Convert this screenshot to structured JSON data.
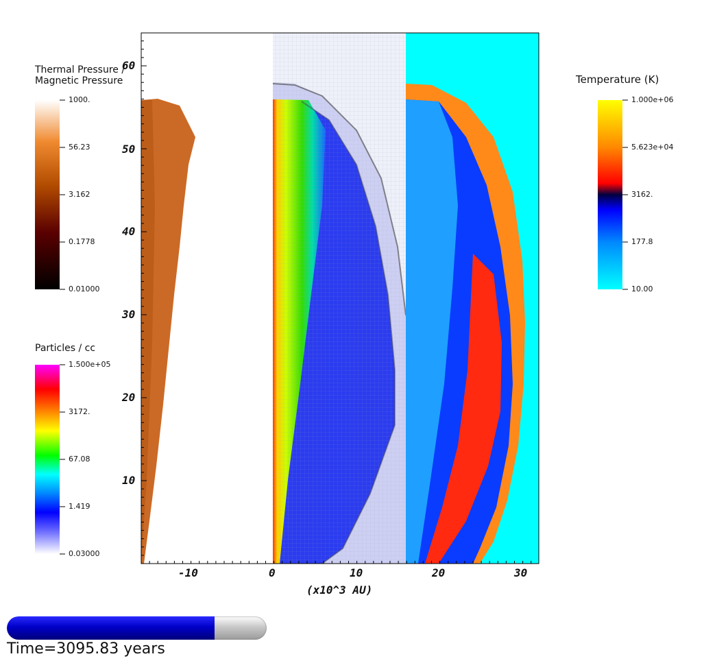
{
  "x_axis": {
    "label": "(x10^3 AU)",
    "ticks": [
      "-10",
      "0",
      "10",
      "20",
      "30"
    ]
  },
  "y_axis": {
    "ticks": [
      "10",
      "20",
      "30",
      "40",
      "50",
      "60"
    ]
  },
  "colorbars": {
    "pressure": {
      "title_line1": "Thermal Pressure /",
      "title_line2": "Magnetic Pressure",
      "ticks": [
        "1000.",
        "56.23",
        "3.162",
        "0.1778",
        "0.01000"
      ]
    },
    "density": {
      "title": "Particles / cc",
      "ticks": [
        "1.500e+05",
        "3172.",
        "67.08",
        "1.419",
        "0.03000"
      ]
    },
    "temperature": {
      "title": "Temperature (K)",
      "ticks": [
        "1.000e+06",
        "5.623e+04",
        "3162.",
        "177.8",
        "10.00"
      ]
    }
  },
  "time": {
    "label": "Time=3095.83 years",
    "progress_fraction": 0.8
  }
}
